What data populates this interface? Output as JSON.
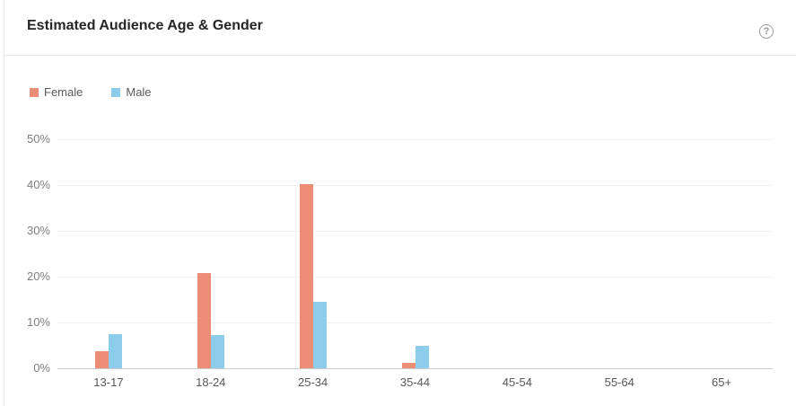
{
  "card": {
    "title": "Estimated Audience Age & Gender",
    "help_icon": {
      "name": "question-mark-circle-icon",
      "glyph": "?"
    }
  },
  "colors": {
    "female_bar": "#ec8d76",
    "male_bar": "#8bcdea",
    "grid_line": "#f1f1f1",
    "axis_line": "#cccccc",
    "header_border": "#e8e8e8",
    "title_text": "#262626",
    "axis_text": "#7f7f7f",
    "legend_text": "#5a5a5a"
  },
  "chart_data": {
    "type": "bar",
    "title": "Estimated Audience Age & Gender",
    "categories": [
      "13-17",
      "18-24",
      "25-34",
      "35-44",
      "45-54",
      "55-64",
      "65+"
    ],
    "series": [
      {
        "name": "Female",
        "color": "#ec8d76",
        "values": [
          3.7,
          20.8,
          40.3,
          1.2,
          0,
          0,
          0
        ]
      },
      {
        "name": "Male",
        "color": "#8bcdea",
        "values": [
          7.4,
          7.3,
          14.6,
          4.9,
          0,
          0,
          0
        ]
      }
    ],
    "xlabel": "",
    "ylabel": "",
    "ylim": [
      0,
      50
    ],
    "y_tick_step": 10,
    "y_ticks_top_down": [
      "50%",
      "40%",
      "30%",
      "20%",
      "10%",
      "0%"
    ],
    "grid": true,
    "legend_position": "top-left",
    "legend": [
      "Female",
      "Male"
    ]
  }
}
